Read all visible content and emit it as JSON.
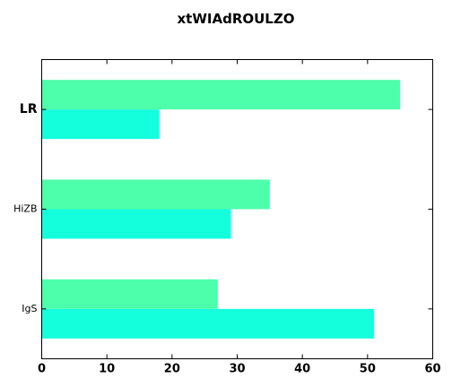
{
  "chart_data": {
    "type": "bar",
    "orientation": "horizontal",
    "title": "xtWIAdROULZO",
    "categories": [
      "LR",
      "HiZB",
      "IgS"
    ],
    "series": [
      {
        "color": "#4dffaa",
        "values": [
          55,
          35,
          27
        ]
      },
      {
        "color": "#14ffdc",
        "values": [
          18,
          29,
          51
        ]
      }
    ],
    "xlim": [
      0,
      60
    ],
    "xticks": [
      "0",
      "10",
      "20",
      "30",
      "40",
      "50",
      "60"
    ],
    "xlabel": "",
    "ylabel": "",
    "grid": false,
    "legend": "none"
  }
}
